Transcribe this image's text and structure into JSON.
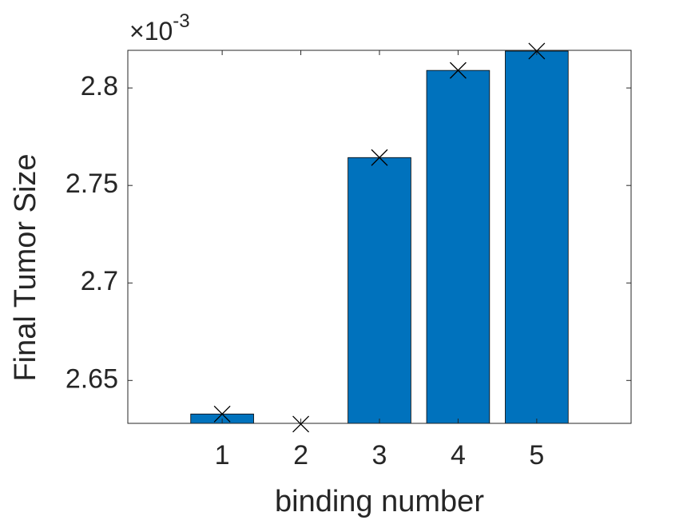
{
  "chart_data": {
    "type": "bar",
    "x_label": "binding number",
    "y_label": "Final Tumor  Size",
    "y_multiplier": "×10",
    "y_exponent": "-3",
    "x": [
      1,
      2,
      3,
      4,
      5
    ],
    "values": [
      2.6328,
      2.6276,
      2.7643,
      2.809,
      2.8189
    ],
    "color": "#0072bd",
    "edge_color": "#000000",
    "marker": "x",
    "xlim": [
      -0.2,
      6.2
    ],
    "xticks": [
      1,
      2,
      3,
      4,
      5
    ],
    "ylim": [
      2.628,
      2.8193
    ],
    "yticks": [
      2.65,
      2.7,
      2.75,
      2.8
    ],
    "grid": false
  }
}
